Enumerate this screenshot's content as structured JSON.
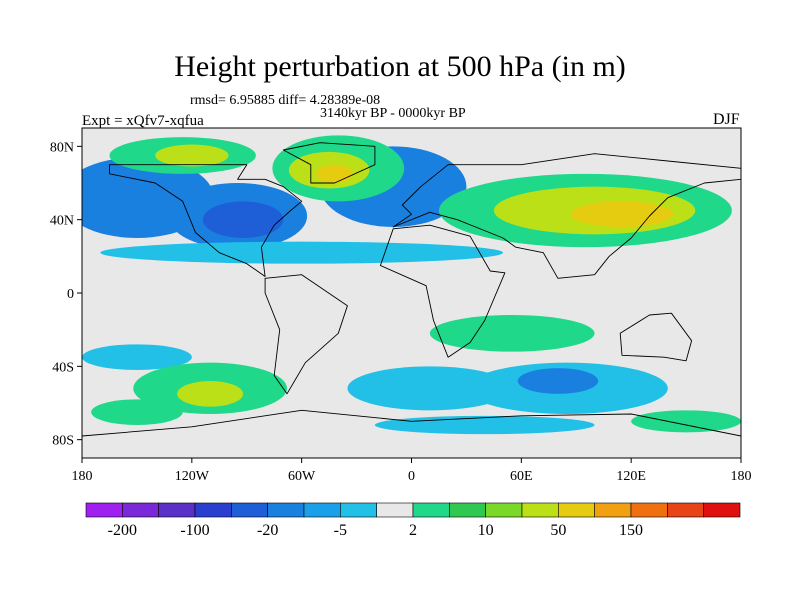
{
  "figure": {
    "title": "Height perturbation at 500 hPa (in m)",
    "stats": "rmsd= 6.95885 diff= 4.28389e-08",
    "period": "3140kyr BP - 0000kyr BP",
    "experiment": "Expt = xQfv7-xqfua",
    "season": "DJF"
  },
  "axes": {
    "x_ticks": [
      {
        "lon": -180,
        "label": "180"
      },
      {
        "lon": -120,
        "label": "120W"
      },
      {
        "lon": -60,
        "label": "60W"
      },
      {
        "lon": 0,
        "label": "0"
      },
      {
        "lon": 60,
        "label": "60E"
      },
      {
        "lon": 120,
        "label": "120E"
      },
      {
        "lon": 180,
        "label": "180"
      }
    ],
    "y_ticks": [
      {
        "lat": 80,
        "label": "80N"
      },
      {
        "lat": 40,
        "label": "40N"
      },
      {
        "lat": 0,
        "label": "0"
      },
      {
        "lat": -40,
        "label": "40S"
      },
      {
        "lat": -80,
        "label": "80S"
      }
    ],
    "lon_range": [
      -180,
      180
    ],
    "lat_range": [
      -90,
      90
    ]
  },
  "colorbar": {
    "colors": [
      "#a020f0",
      "#7a28d8",
      "#5a30c8",
      "#2a3fd0",
      "#1e5fd8",
      "#1a80e0",
      "#1aa0e8",
      "#22c0e6",
      "#e8e8e8",
      "#20d88a",
      "#30c850",
      "#7ad828",
      "#bce018",
      "#e6cc10",
      "#f0a010",
      "#f07010",
      "#e84418",
      "#e01010"
    ],
    "labels": [
      {
        "after_box": 1,
        "text": "-200"
      },
      {
        "after_box": 3,
        "text": "-100"
      },
      {
        "after_box": 5,
        "text": "-20"
      },
      {
        "after_box": 7,
        "text": "-5"
      },
      {
        "after_box": 9,
        "text": "2"
      },
      {
        "after_box": 11,
        "text": "10"
      },
      {
        "after_box": 13,
        "text": "50"
      },
      {
        "after_box": 15,
        "text": "150"
      }
    ]
  },
  "field_regions": [
    {
      "name": "n-pacific-blue",
      "lon": -150,
      "lat": 52,
      "rx": 42,
      "ry": 22,
      "color": "#1a80e0"
    },
    {
      "name": "n-america-blue",
      "lon": -95,
      "lat": 42,
      "rx": 38,
      "ry": 18,
      "color": "#1a80e0"
    },
    {
      "name": "n-america-core",
      "lon": -92,
      "lat": 40,
      "rx": 22,
      "ry": 10,
      "color": "#1e5fd8"
    },
    {
      "name": "n-atlantic-blue",
      "lon": -10,
      "lat": 58,
      "rx": 40,
      "ry": 22,
      "color": "#1a80e0"
    },
    {
      "name": "greenland-green",
      "lon": -40,
      "lat": 68,
      "rx": 36,
      "ry": 18,
      "color": "#20d88a"
    },
    {
      "name": "greenland-yellow",
      "lon": -45,
      "lat": 67,
      "rx": 22,
      "ry": 10,
      "color": "#bce018"
    },
    {
      "name": "greenland-core",
      "lon": -42,
      "lat": 65,
      "rx": 10,
      "ry": 5,
      "color": "#e6cc10"
    },
    {
      "name": "arctic-green",
      "lon": -125,
      "lat": 75,
      "rx": 40,
      "ry": 10,
      "color": "#20d88a"
    },
    {
      "name": "arctic-yellow",
      "lon": -120,
      "lat": 75,
      "rx": 20,
      "ry": 6,
      "color": "#bce018"
    },
    {
      "name": "asia-green",
      "lon": 95,
      "lat": 45,
      "rx": 80,
      "ry": 20,
      "color": "#20d88a"
    },
    {
      "name": "asia-yellow",
      "lon": 100,
      "lat": 45,
      "rx": 55,
      "ry": 13,
      "color": "#bce018"
    },
    {
      "name": "asia-orange",
      "lon": 115,
      "lat": 43,
      "rx": 28,
      "ry": 7,
      "color": "#e6cc10"
    },
    {
      "name": "subtropic-cyan",
      "lon": -60,
      "lat": 22,
      "rx": 110,
      "ry": 6,
      "color": "#22c0e6"
    },
    {
      "name": "indian-green",
      "lon": 55,
      "lat": -22,
      "rx": 45,
      "ry": 10,
      "color": "#20d88a"
    },
    {
      "name": "s-pacific-cyan",
      "lon": -150,
      "lat": -35,
      "rx": 30,
      "ry": 7,
      "color": "#22c0e6"
    },
    {
      "name": "s-atlantic-cyan",
      "lon": 10,
      "lat": -52,
      "rx": 45,
      "ry": 12,
      "color": "#22c0e6"
    },
    {
      "name": "s-indian-cyan",
      "lon": 85,
      "lat": -52,
      "rx": 55,
      "ry": 14,
      "color": "#22c0e6"
    },
    {
      "name": "s-indian-blue",
      "lon": 80,
      "lat": -48,
      "rx": 22,
      "ry": 7,
      "color": "#1a80e0"
    },
    {
      "name": "s-pacific-green",
      "lon": -110,
      "lat": -52,
      "rx": 42,
      "ry": 14,
      "color": "#20d88a"
    },
    {
      "name": "s-pacific-yellow",
      "lon": -110,
      "lat": -55,
      "rx": 18,
      "ry": 7,
      "color": "#bce018"
    },
    {
      "name": "s-pacific-green2",
      "lon": -150,
      "lat": -65,
      "rx": 25,
      "ry": 7,
      "color": "#20d88a"
    },
    {
      "name": "antarctic-cyan",
      "lon": 40,
      "lat": -72,
      "rx": 60,
      "ry": 5,
      "color": "#22c0e6"
    },
    {
      "name": "antarctic-green",
      "lon": 150,
      "lat": -70,
      "rx": 30,
      "ry": 6,
      "color": "#20d88a"
    }
  ],
  "land_outlines": [
    {
      "name": "north-america",
      "points": [
        [
          -165,
          65
        ],
        [
          -140,
          60
        ],
        [
          -125,
          50
        ],
        [
          -118,
          33
        ],
        [
          -105,
          22
        ],
        [
          -90,
          16
        ],
        [
          -80,
          9
        ],
        [
          -82,
          25
        ],
        [
          -75,
          37
        ],
        [
          -66,
          45
        ],
        [
          -60,
          50
        ],
        [
          -70,
          58
        ],
        [
          -80,
          62
        ],
        [
          -95,
          62
        ],
        [
          -90,
          70
        ],
        [
          -120,
          70
        ],
        [
          -165,
          70
        ]
      ]
    },
    {
      "name": "greenland",
      "points": [
        [
          -55,
          60
        ],
        [
          -42,
          60
        ],
        [
          -20,
          70
        ],
        [
          -20,
          80
        ],
        [
          -50,
          82
        ],
        [
          -70,
          78
        ],
        [
          -55,
          70
        ]
      ]
    },
    {
      "name": "south-america",
      "points": [
        [
          -80,
          8
        ],
        [
          -60,
          10
        ],
        [
          -35,
          -7
        ],
        [
          -40,
          -22
        ],
        [
          -58,
          -38
        ],
        [
          -68,
          -55
        ],
        [
          -75,
          -45
        ],
        [
          -72,
          -20
        ],
        [
          -80,
          0
        ]
      ]
    },
    {
      "name": "europe-asia",
      "points": [
        [
          -10,
          36
        ],
        [
          0,
          43
        ],
        [
          -5,
          48
        ],
        [
          5,
          58
        ],
        [
          20,
          70
        ],
        [
          60,
          70
        ],
        [
          100,
          76
        ],
        [
          140,
          72
        ],
        [
          180,
          68
        ],
        [
          180,
          62
        ],
        [
          160,
          60
        ],
        [
          140,
          52
        ],
        [
          130,
          42
        ],
        [
          120,
          30
        ],
        [
          108,
          20
        ],
        [
          100,
          10
        ],
        [
          80,
          8
        ],
        [
          72,
          22
        ],
        [
          57,
          25
        ],
        [
          50,
          30
        ],
        [
          35,
          36
        ],
        [
          25,
          40
        ],
        [
          10,
          44
        ]
      ]
    },
    {
      "name": "africa",
      "points": [
        [
          -17,
          15
        ],
        [
          -10,
          35
        ],
        [
          10,
          37
        ],
        [
          32,
          31
        ],
        [
          43,
          12
        ],
        [
          51,
          11
        ],
        [
          40,
          -15
        ],
        [
          32,
          -27
        ],
        [
          20,
          -35
        ],
        [
          12,
          -15
        ],
        [
          8,
          4
        ]
      ]
    },
    {
      "name": "australia",
      "points": [
        [
          114,
          -22
        ],
        [
          130,
          -12
        ],
        [
          142,
          -11
        ],
        [
          153,
          -26
        ],
        [
          150,
          -37
        ],
        [
          138,
          -35
        ],
        [
          115,
          -34
        ]
      ]
    },
    {
      "name": "antarctica",
      "points": [
        [
          -180,
          -78
        ],
        [
          -120,
          -73
        ],
        [
          -60,
          -64
        ],
        [
          0,
          -70
        ],
        [
          60,
          -67
        ],
        [
          120,
          -66
        ],
        [
          180,
          -78
        ],
        [
          180,
          -90
        ],
        [
          -180,
          -90
        ]
      ]
    }
  ]
}
